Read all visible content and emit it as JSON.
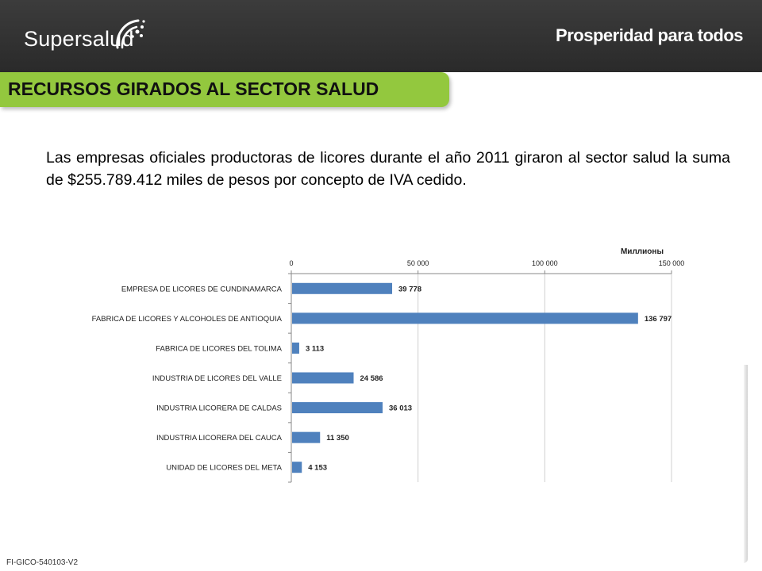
{
  "header": {
    "brand": "Supersalud",
    "slogan": "Prosperidad para todos"
  },
  "title": "RECURSOS GIRADOS AL SECTOR  SALUD",
  "intro": "Las empresas oficiales productoras de licores durante el año 2011 giraron al sector salud la suma de $255.789.412 miles de pesos por concepto de IVA cedido.",
  "footer": {
    "code": "FI-GICO-540103-V2"
  },
  "colors": {
    "header_bg": "#333333",
    "title_bg": "#93c83e",
    "bar": "#4f81bd"
  },
  "chart_data": {
    "type": "bar",
    "orientation": "horizontal",
    "unit_label": "Миллионы",
    "xlim": [
      0,
      150000
    ],
    "ticks": [
      {
        "value": 0,
        "label": "0"
      },
      {
        "value": 50000,
        "label": "50 000"
      },
      {
        "value": 100000,
        "label": "100 000"
      },
      {
        "value": 150000,
        "label": "150 000"
      }
    ],
    "grid": true,
    "categories": [
      "EMPRESA DE LICORES DE CUNDINAMARCA",
      "FABRICA DE LICORES Y ALCOHOLES DE ANTIOQUIA",
      "FABRICA DE LICORES DEL TOLIMA",
      "INDUSTRIA DE LICORES DEL VALLE",
      "INDUSTRIA LICORERA DE CALDAS",
      "INDUSTRIA LICORERA DEL CAUCA",
      "UNIDAD DE LICORES DEL META"
    ],
    "values": [
      39778,
      136797,
      3113,
      24586,
      36013,
      11350,
      4153
    ],
    "value_labels": [
      "39 778",
      "136 797",
      "3 113",
      "24 586",
      "36 013",
      "11 350",
      "4 153"
    ]
  }
}
